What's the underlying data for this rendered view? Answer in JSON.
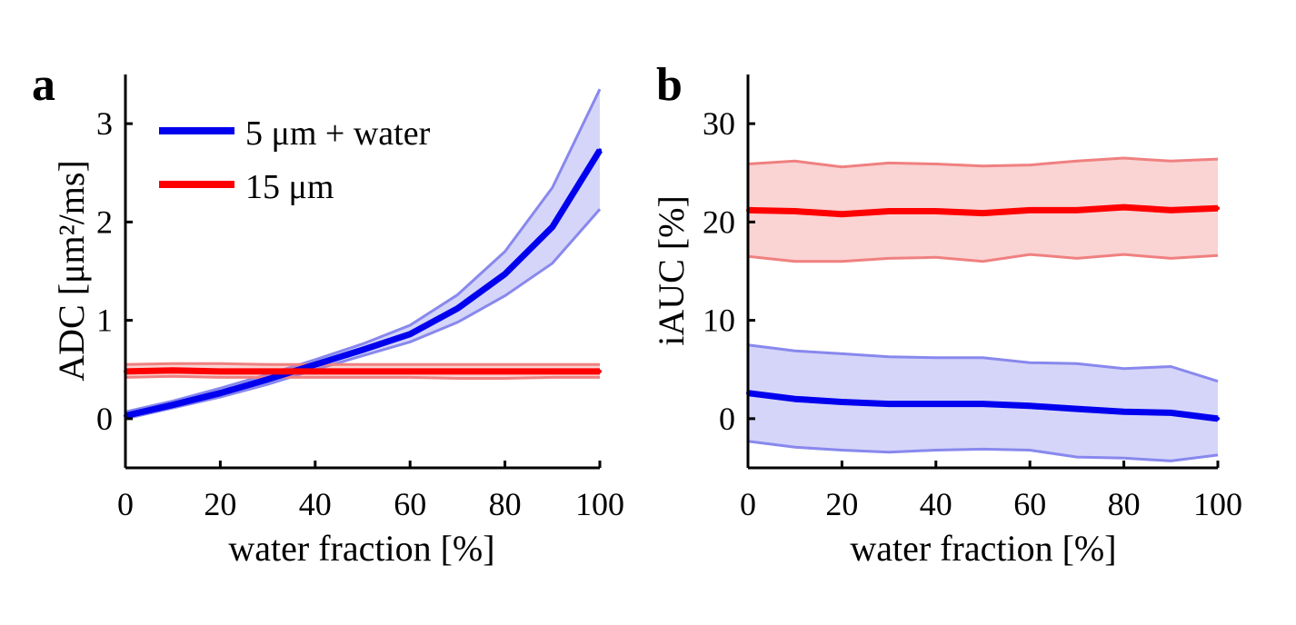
{
  "chart_data": [
    {
      "type": "line",
      "panel_label": "a",
      "xlabel": "water fraction [%]",
      "ylabel": "ADC [μm²/ms]",
      "xlim": [
        0,
        100
      ],
      "ylim": [
        -0.5,
        3.5
      ],
      "xticks": [
        0,
        20,
        40,
        60,
        80,
        100
      ],
      "yticks": [
        0,
        1,
        2,
        3
      ],
      "x": [
        0,
        10,
        20,
        30,
        40,
        50,
        60,
        70,
        80,
        90,
        100
      ],
      "legend": {
        "placement": "top-left",
        "entries": [
          "5 μm + water",
          "15 μm"
        ]
      },
      "series": [
        {
          "name": "5 μm + water",
          "color": "#0000ee",
          "band_color": "#8888ee",
          "values": [
            0.03,
            0.14,
            0.26,
            0.4,
            0.55,
            0.7,
            0.86,
            1.12,
            1.47,
            1.95,
            2.73
          ],
          "upper": [
            0.07,
            0.18,
            0.31,
            0.45,
            0.6,
            0.76,
            0.95,
            1.26,
            1.7,
            2.35,
            3.35
          ],
          "lower": [
            0.0,
            0.11,
            0.22,
            0.35,
            0.5,
            0.64,
            0.78,
            0.98,
            1.25,
            1.58,
            2.13
          ]
        },
        {
          "name": "15 μm",
          "color": "#ff0000",
          "band_color": "#f08080",
          "values": [
            0.48,
            0.49,
            0.48,
            0.48,
            0.48,
            0.48,
            0.48,
            0.48,
            0.48,
            0.48,
            0.48
          ],
          "upper": [
            0.55,
            0.56,
            0.56,
            0.55,
            0.55,
            0.55,
            0.55,
            0.55,
            0.55,
            0.55,
            0.55
          ],
          "lower": [
            0.42,
            0.43,
            0.42,
            0.42,
            0.42,
            0.42,
            0.42,
            0.41,
            0.41,
            0.42,
            0.42
          ]
        }
      ]
    },
    {
      "type": "line",
      "panel_label": "b",
      "xlabel": "water fraction [%]",
      "ylabel": "iAUC [%]",
      "xlim": [
        0,
        100
      ],
      "ylim": [
        -5,
        35
      ],
      "xticks": [
        0,
        20,
        40,
        60,
        80,
        100
      ],
      "yticks": [
        0,
        10,
        20,
        30
      ],
      "x": [
        0,
        10,
        20,
        30,
        40,
        50,
        60,
        70,
        80,
        90,
        100
      ],
      "series": [
        {
          "name": "15 μm",
          "color": "#ff0000",
          "band_color": "#f08080",
          "values": [
            21.2,
            21.1,
            20.8,
            21.1,
            21.1,
            20.9,
            21.2,
            21.2,
            21.5,
            21.2,
            21.4
          ],
          "upper": [
            25.9,
            26.2,
            25.6,
            26.0,
            25.9,
            25.7,
            25.8,
            26.2,
            26.5,
            26.2,
            26.4
          ],
          "lower": [
            16.5,
            16.0,
            16.0,
            16.3,
            16.4,
            16.0,
            16.7,
            16.3,
            16.7,
            16.3,
            16.6
          ]
        },
        {
          "name": "5 μm + water",
          "color": "#0000ee",
          "band_color": "#8888ee",
          "values": [
            2.6,
            2.0,
            1.7,
            1.5,
            1.5,
            1.5,
            1.3,
            1.0,
            0.7,
            0.6,
            0.0
          ],
          "upper": [
            7.5,
            6.9,
            6.6,
            6.3,
            6.2,
            6.2,
            5.7,
            5.6,
            5.1,
            5.3,
            3.8
          ],
          "lower": [
            -2.3,
            -2.9,
            -3.2,
            -3.4,
            -3.2,
            -3.1,
            -3.2,
            -3.9,
            -4.0,
            -4.3,
            -3.7
          ]
        }
      ]
    }
  ]
}
